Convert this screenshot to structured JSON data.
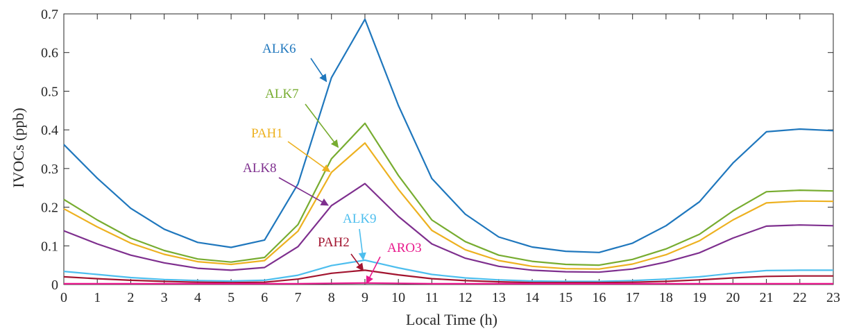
{
  "chart_data": {
    "type": "line",
    "title": "",
    "xlabel": "Local Time (h)",
    "ylabel": "IVOCs (ppb)",
    "xlim": [
      0,
      23
    ],
    "ylim": [
      0,
      0.7
    ],
    "grid": false,
    "x": [
      0,
      1,
      2,
      3,
      4,
      5,
      6,
      7,
      8,
      9,
      10,
      11,
      12,
      13,
      14,
      15,
      16,
      17,
      18,
      19,
      20,
      21,
      22,
      23
    ],
    "x_tick_labels": [
      "0",
      "1",
      "2",
      "3",
      "4",
      "5",
      "6",
      "7",
      "8",
      "9",
      "10",
      "11",
      "12",
      "13",
      "14",
      "15",
      "16",
      "17",
      "18",
      "19",
      "20",
      "21",
      "22",
      "23"
    ],
    "y_ticks": [
      0,
      0.1,
      0.2,
      0.3,
      0.4,
      0.5,
      0.6,
      0.7
    ],
    "y_tick_labels": [
      "0",
      "0.1",
      "0.2",
      "0.3",
      "0.4",
      "0.5",
      "0.6",
      "0.7"
    ],
    "series": [
      {
        "name": "ALK6",
        "color": "#1f77bd",
        "values": [
          0.362,
          0.275,
          0.197,
          0.143,
          0.109,
          0.096,
          0.115,
          0.26,
          0.535,
          0.686,
          0.463,
          0.274,
          0.182,
          0.123,
          0.097,
          0.086,
          0.083,
          0.107,
          0.152,
          0.214,
          0.314,
          0.395,
          0.402,
          0.398
        ]
      },
      {
        "name": "ALK7",
        "color": "#77ac30",
        "values": [
          0.22,
          0.167,
          0.12,
          0.088,
          0.066,
          0.058,
          0.07,
          0.155,
          0.325,
          0.417,
          0.282,
          0.167,
          0.111,
          0.076,
          0.06,
          0.052,
          0.05,
          0.065,
          0.092,
          0.13,
          0.19,
          0.24,
          0.244,
          0.242
        ]
      },
      {
        "name": "PAH1",
        "color": "#edb120",
        "values": [
          0.196,
          0.149,
          0.107,
          0.078,
          0.059,
          0.052,
          0.062,
          0.138,
          0.29,
          0.366,
          0.246,
          0.14,
          0.09,
          0.062,
          0.047,
          0.041,
          0.04,
          0.053,
          0.077,
          0.113,
          0.167,
          0.211,
          0.216,
          0.215
        ]
      },
      {
        "name": "ALK8",
        "color": "#7e2f8e",
        "values": [
          0.139,
          0.105,
          0.076,
          0.056,
          0.042,
          0.037,
          0.044,
          0.098,
          0.204,
          0.261,
          0.176,
          0.105,
          0.068,
          0.047,
          0.037,
          0.033,
          0.032,
          0.04,
          0.058,
          0.082,
          0.12,
          0.151,
          0.154,
          0.152
        ]
      },
      {
        "name": "ALK9",
        "color": "#4dbeee",
        "values": [
          0.034,
          0.026,
          0.018,
          0.013,
          0.01,
          0.009,
          0.011,
          0.024,
          0.049,
          0.063,
          0.043,
          0.026,
          0.017,
          0.012,
          0.009,
          0.008,
          0.008,
          0.01,
          0.014,
          0.02,
          0.029,
          0.036,
          0.037,
          0.037
        ]
      },
      {
        "name": "PAH2",
        "color": "#a2142f",
        "values": [
          0.02,
          0.015,
          0.011,
          0.008,
          0.006,
          0.005,
          0.006,
          0.014,
          0.029,
          0.037,
          0.025,
          0.015,
          0.01,
          0.007,
          0.005,
          0.005,
          0.005,
          0.006,
          0.008,
          0.012,
          0.017,
          0.021,
          0.022,
          0.022
        ]
      },
      {
        "name": "ARO3",
        "color": "#e8188c",
        "values": [
          0.002,
          0.002,
          0.002,
          0.002,
          0.002,
          0.002,
          0.002,
          0.002,
          0.003,
          0.004,
          0.003,
          0.002,
          0.002,
          0.002,
          0.002,
          0.002,
          0.002,
          0.002,
          0.002,
          0.002,
          0.002,
          0.002,
          0.002,
          0.002
        ]
      }
    ]
  }
}
